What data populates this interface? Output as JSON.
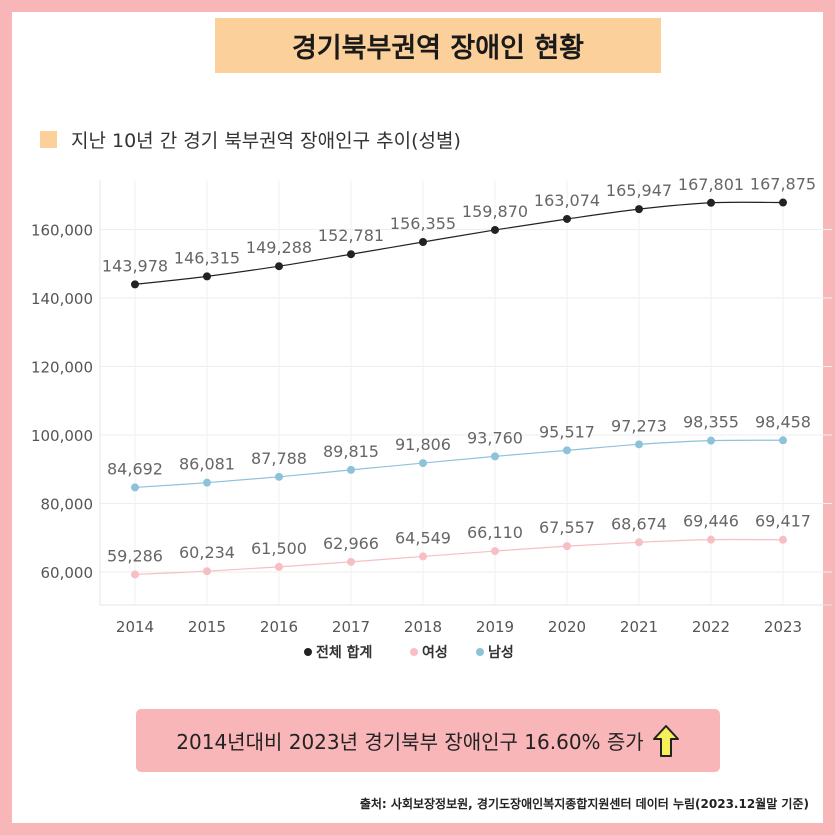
{
  "header": {
    "title": "경기북부권역 장애인 현황"
  },
  "subtitle": "지난 10년 간 경기 북부권역 장애인구 추이(성별)",
  "chart_data": {
    "type": "line",
    "x": [
      "2014",
      "2015",
      "2016",
      "2017",
      "2018",
      "2019",
      "2020",
      "2021",
      "2022",
      "2023"
    ],
    "series": [
      {
        "name": "전체 합계",
        "color": "#222222",
        "values": [
          143978,
          146315,
          149288,
          152781,
          156355,
          159870,
          163074,
          165947,
          167801,
          167875
        ],
        "labels": [
          "143,978",
          "146,315",
          "149,288",
          "152,781",
          "156,355",
          "159,870",
          "163,074",
          "165,947",
          "167,801",
          "167,875"
        ]
      },
      {
        "name": "여성",
        "color": "#f7bfc3",
        "values": [
          59286,
          60234,
          61500,
          62966,
          64549,
          66110,
          67557,
          68674,
          69446,
          69417
        ],
        "labels": [
          "59,286",
          "60,234",
          "61,500",
          "62,966",
          "64,549",
          "66,110",
          "67,557",
          "68,674",
          "69,446",
          "69,417"
        ]
      },
      {
        "name": "남성",
        "color": "#8ec2db",
        "values": [
          84692,
          86081,
          87788,
          89815,
          91806,
          93760,
          95517,
          97273,
          98355,
          98458
        ],
        "labels": [
          "84,692",
          "86,081",
          "87,788",
          "89,815",
          "91,806",
          "93,760",
          "95,517",
          "97,273",
          "98,355",
          "98,458"
        ]
      }
    ],
    "yticks": [
      60000,
      80000,
      100000,
      120000,
      140000,
      160000
    ],
    "ytick_labels": [
      "60,000",
      "80,000",
      "100,000",
      "120,000",
      "140,000",
      "160,000"
    ],
    "ylim": [
      50000,
      172000
    ],
    "grid": true,
    "legend_position": "bottom-center"
  },
  "summary": {
    "text": "2014년대비 2023년 경기북부 장애인구 16.60% 증가",
    "arrow_icon": "up-arrow-icon",
    "arrow_color": "#f7ef5a"
  },
  "source": "출처: 사회보장정보원, 경기도장애인복지종합지원센터 데이터 누림(2023.12월말 기준)"
}
